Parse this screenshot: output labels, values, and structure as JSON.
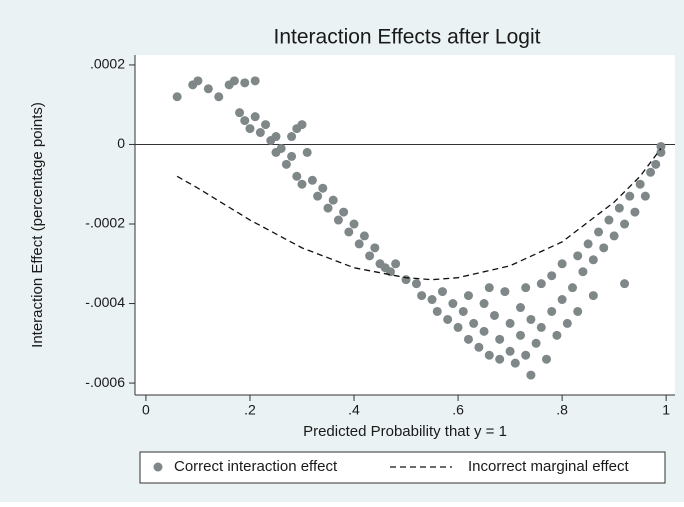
{
  "chart_data": {
    "type": "scatter",
    "title": "Interaction Effects after Logit",
    "x_label": "Predicted Probability that y = 1",
    "y_label": "Interaction Effect (percentage points)",
    "xlim": [
      -0.021,
      1.017
    ],
    "ylim": [
      -0.00063,
      0.000225
    ],
    "xticks": [
      0,
      {
        "value": 0.2,
        "label": ".2"
      },
      {
        "value": 0.4,
        "label": ".4"
      },
      {
        "value": 0.6,
        "label": ".6"
      },
      {
        "value": 0.8,
        "label": ".8"
      },
      1
    ],
    "yticks": [
      {
        "value": -0.0006,
        "label": "-.0006"
      },
      {
        "value": -0.0004,
        "label": "-.0004"
      },
      {
        "value": -0.0002,
        "label": "-.0002"
      },
      0,
      {
        "value": 0.0002,
        "label": ".0002"
      }
    ],
    "yline": 0,
    "grid": false,
    "legend": "bottom",
    "series": [
      {
        "name": "Correct interaction effect",
        "type": "scatter",
        "color": "#7f8788",
        "x": [
          0.06,
          0.09,
          0.1,
          0.12,
          0.14,
          0.16,
          0.17,
          0.19,
          0.21,
          0.18,
          0.19,
          0.2,
          0.21,
          0.22,
          0.23,
          0.24,
          0.25,
          0.25,
          0.26,
          0.27,
          0.28,
          0.28,
          0.29,
          0.3,
          0.31,
          0.29,
          0.3,
          0.32,
          0.33,
          0.34,
          0.35,
          0.36,
          0.37,
          0.38,
          0.39,
          0.4,
          0.41,
          0.42,
          0.43,
          0.44,
          0.45,
          0.46,
          0.47,
          0.48,
          0.5,
          0.52,
          0.53,
          0.55,
          0.56,
          0.57,
          0.58,
          0.59,
          0.6,
          0.61,
          0.62,
          0.62,
          0.63,
          0.64,
          0.65,
          0.65,
          0.66,
          0.66,
          0.67,
          0.68,
          0.68,
          0.69,
          0.7,
          0.7,
          0.71,
          0.72,
          0.72,
          0.73,
          0.73,
          0.74,
          0.74,
          0.75,
          0.76,
          0.76,
          0.77,
          0.78,
          0.78,
          0.79,
          0.8,
          0.8,
          0.81,
          0.82,
          0.83,
          0.83,
          0.84,
          0.85,
          0.86,
          0.86,
          0.87,
          0.88,
          0.89,
          0.9,
          0.91,
          0.92,
          0.92,
          0.93,
          0.94,
          0.95,
          0.96,
          0.97,
          0.98,
          0.99,
          0.99
        ],
        "values": [
          0.00012,
          0.00015,
          0.00016,
          0.00014,
          0.00012,
          0.00015,
          0.00016,
          0.000155,
          0.00016,
          8e-05,
          6e-05,
          4e-05,
          7e-05,
          3e-05,
          5e-05,
          1e-05,
          2e-05,
          -2e-05,
          -1e-05,
          -5e-05,
          -3e-05,
          2e-05,
          4e-05,
          5e-05,
          -2e-05,
          -8e-05,
          -0.0001,
          -9e-05,
          -0.00013,
          -0.00011,
          -0.00016,
          -0.00014,
          -0.00019,
          -0.00017,
          -0.00022,
          -0.0002,
          -0.00025,
          -0.00023,
          -0.00028,
          -0.00026,
          -0.0003,
          -0.00031,
          -0.00032,
          -0.0003,
          -0.00034,
          -0.00035,
          -0.00038,
          -0.00039,
          -0.00042,
          -0.00037,
          -0.00044,
          -0.0004,
          -0.00046,
          -0.00042,
          -0.00038,
          -0.00049,
          -0.00045,
          -0.00051,
          -0.0004,
          -0.00047,
          -0.00036,
          -0.00053,
          -0.00043,
          -0.00049,
          -0.00054,
          -0.00037,
          -0.00045,
          -0.00052,
          -0.00055,
          -0.00041,
          -0.00048,
          -0.00036,
          -0.00053,
          -0.00058,
          -0.00044,
          -0.0005,
          -0.00035,
          -0.00046,
          -0.00054,
          -0.00042,
          -0.00033,
          -0.00048,
          -0.00039,
          -0.0003,
          -0.00045,
          -0.00036,
          -0.00028,
          -0.00042,
          -0.00032,
          -0.00025,
          -0.00038,
          -0.00029,
          -0.00022,
          -0.00026,
          -0.00019,
          -0.00023,
          -0.00016,
          -0.0002,
          -0.00035,
          -0.00013,
          -0.00017,
          -0.0001,
          -0.00013,
          -7e-05,
          -5e-05,
          -2e-05,
          -5e-06
        ]
      },
      {
        "name": "Incorrect marginal effect",
        "type": "line",
        "dash": true,
        "color": "#111111",
        "x": [
          0.06,
          0.1,
          0.2,
          0.3,
          0.4,
          0.5,
          0.55,
          0.6,
          0.7,
          0.8,
          0.9,
          0.95,
          0.99
        ],
        "values": [
          -8e-05,
          -0.00011,
          -0.00019,
          -0.00026,
          -0.00031,
          -0.000335,
          -0.00034,
          -0.000335,
          -0.000305,
          -0.000245,
          -0.000145,
          -8e-05,
          -1e-05
        ]
      }
    ]
  }
}
